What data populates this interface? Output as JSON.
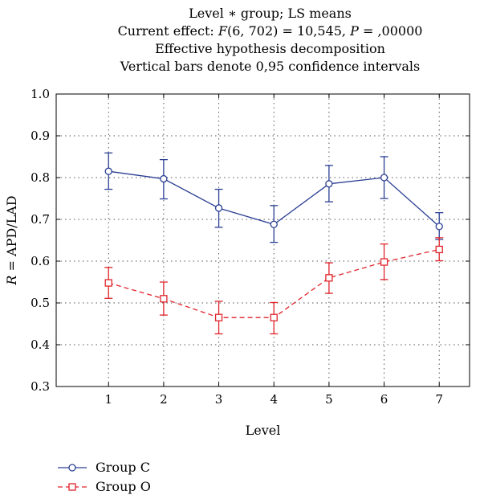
{
  "chart_data": {
    "type": "line",
    "title_lines": [
      "Level ∗ group; LS means",
      "Current effect: F(6, 702) = 10,545, P = ,00000",
      "Effective hypothesis decomposition",
      "Vertical bars denote 0,95 confidence intervals"
    ],
    "xlabel": "Level",
    "ylabel": "R = APD/LAD",
    "x": [
      1,
      2,
      3,
      4,
      5,
      6,
      7
    ],
    "xlim": [
      0.05,
      7.55
    ],
    "ylim": [
      0.3,
      1.0
    ],
    "yticks": [
      0.3,
      0.4,
      0.5,
      0.6,
      0.7,
      0.8,
      0.9,
      1.0
    ],
    "ytick_labels": [
      "0.3",
      "0.4",
      "0.5",
      "0.6",
      "0.7",
      "0.8",
      "0.9",
      "1.0"
    ],
    "grid": "dotted",
    "legend_position": "bottom-left",
    "series": [
      {
        "name": "Group C",
        "color": "#2b3f94",
        "marker": "circle",
        "line_style": "solid",
        "values": [
          0.815,
          0.797,
          0.727,
          0.688,
          0.785,
          0.8,
          0.683
        ],
        "ci_low": [
          0.772,
          0.749,
          0.681,
          0.645,
          0.742,
          0.75,
          0.652
        ],
        "ci_high": [
          0.859,
          0.843,
          0.772,
          0.733,
          0.829,
          0.85,
          0.716
        ]
      },
      {
        "name": "Group O",
        "color": "#e0242b",
        "marker": "square",
        "line_style": "dashed",
        "values": [
          0.548,
          0.51,
          0.465,
          0.465,
          0.56,
          0.598,
          0.628
        ],
        "ci_low": [
          0.511,
          0.471,
          0.426,
          0.426,
          0.523,
          0.556,
          0.601
        ],
        "ci_high": [
          0.585,
          0.55,
          0.504,
          0.501,
          0.596,
          0.641,
          0.656
        ]
      }
    ]
  }
}
